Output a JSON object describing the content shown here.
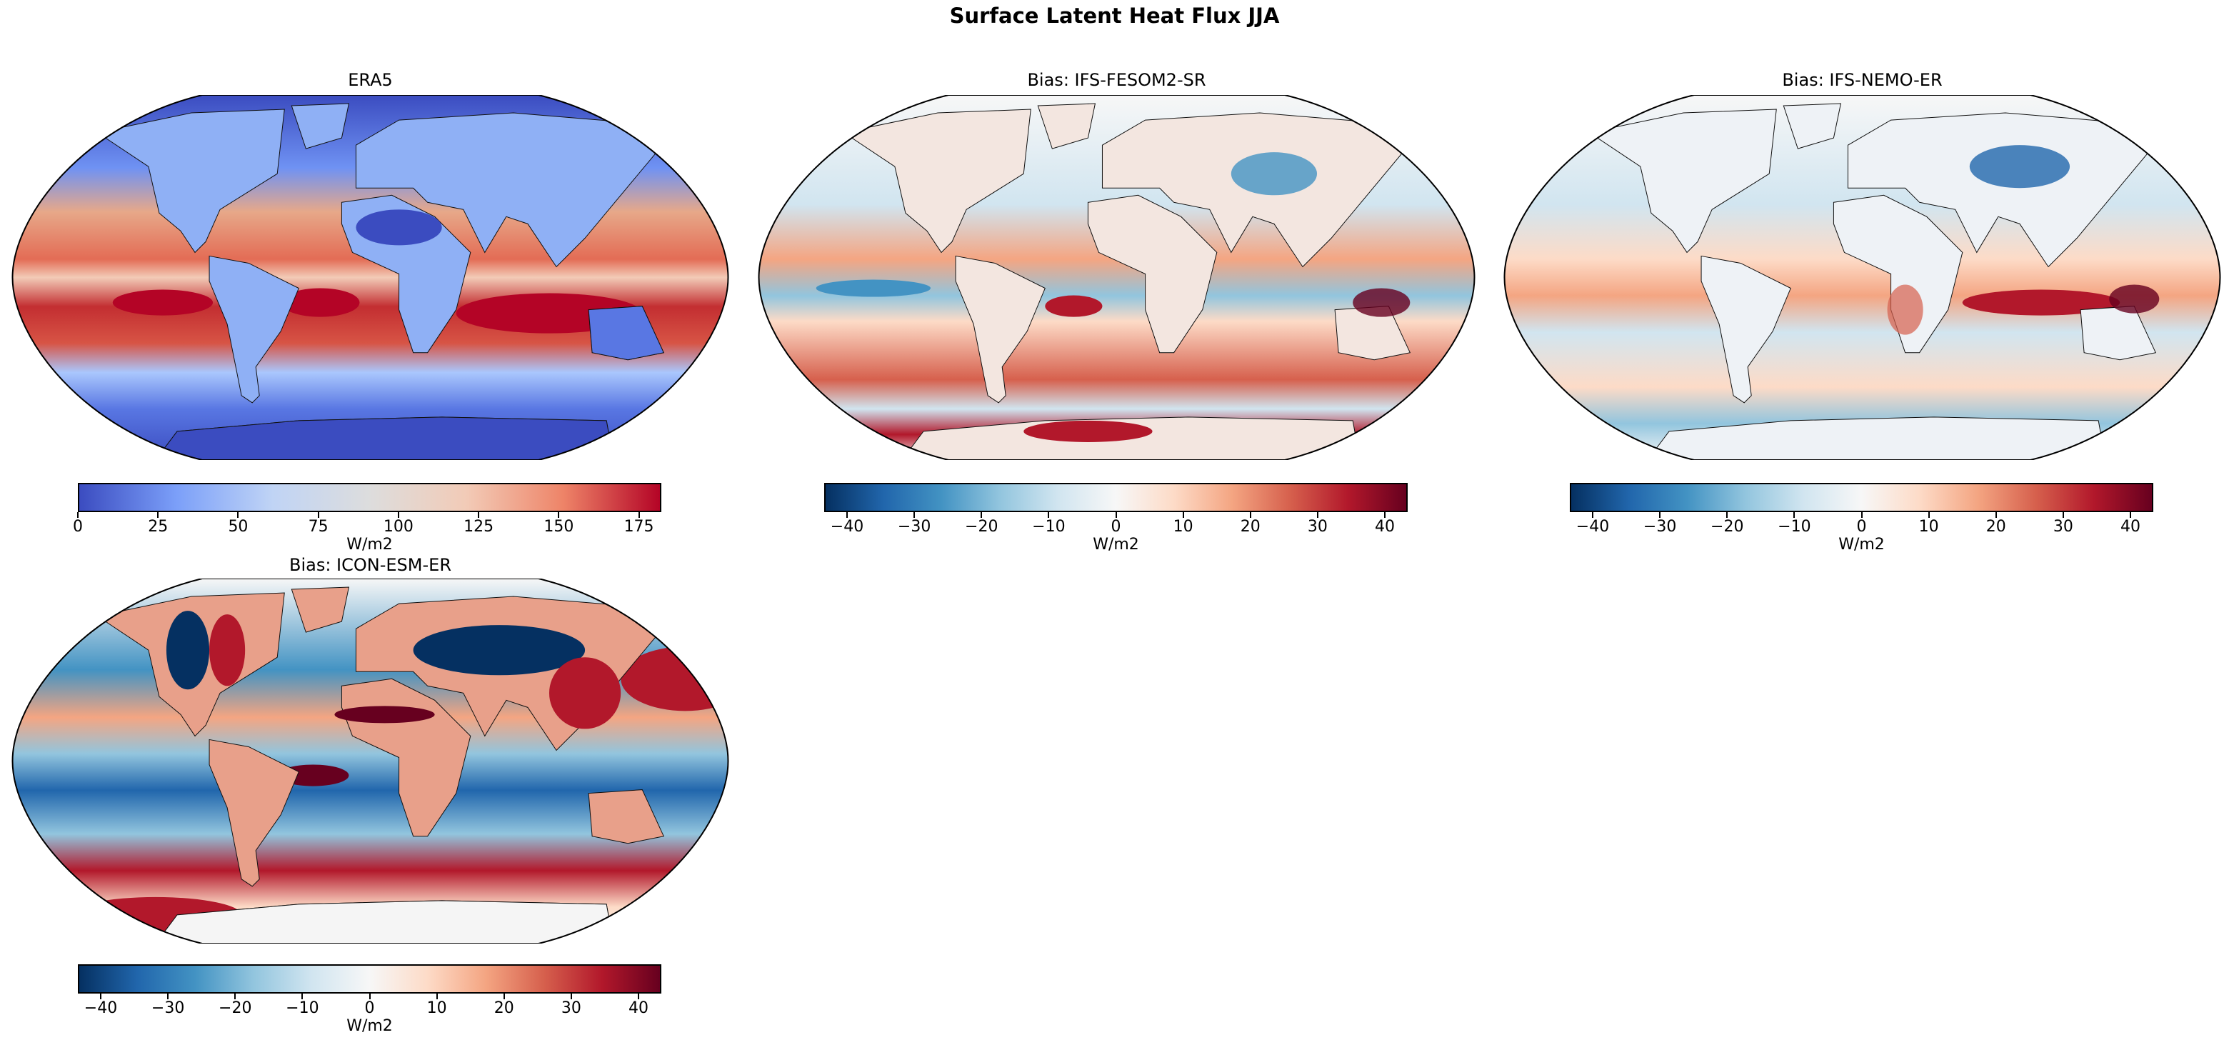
{
  "title": "Surface Latent Heat Flux JJA",
  "chart_data": [
    {
      "type": "heatmap",
      "projection": "Robinson",
      "title": "ERA5",
      "colormap": "coolwarm",
      "colorbar": {
        "label": "W/m2",
        "range": [
          0,
          182
        ],
        "ticks": [
          0,
          25,
          50,
          75,
          100,
          125,
          150,
          175
        ],
        "tick_labels": [
          "0",
          "25",
          "50",
          "75",
          "100",
          "125",
          "150",
          "175"
        ],
        "colors": [
          "#3b4cc0",
          "#7b9ff9",
          "#c0d4f5",
          "#dddddd",
          "#f2cbb7",
          "#ee8468",
          "#b40426"
        ]
      }
    },
    {
      "type": "heatmap",
      "projection": "Robinson",
      "title": "Bias: IFS-FESOM2-SR",
      "colormap": "RdBu_r",
      "colorbar": {
        "label": "W/m2",
        "range": [
          -43.4,
          43.4
        ],
        "ticks": [
          -40,
          -30,
          -20,
          -10,
          0,
          10,
          20,
          30,
          40
        ],
        "tick_labels": [
          "−40",
          "−30",
          "−20",
          "−10",
          "0",
          "10",
          "20",
          "30",
          "40"
        ],
        "colors": [
          "#053061",
          "#2166ac",
          "#4393c3",
          "#92c5de",
          "#d1e5f0",
          "#f7f7f7",
          "#fddbc7",
          "#f4a582",
          "#d6604d",
          "#b2182b",
          "#67001f"
        ]
      }
    },
    {
      "type": "heatmap",
      "projection": "Robinson",
      "title": "Bias: IFS-NEMO-ER",
      "colormap": "RdBu_r",
      "colorbar": {
        "label": "W/m2",
        "range": [
          -43.4,
          43.4
        ],
        "ticks": [
          -40,
          -30,
          -20,
          -10,
          0,
          10,
          20,
          30,
          40
        ],
        "tick_labels": [
          "−40",
          "−30",
          "−20",
          "−10",
          "0",
          "10",
          "20",
          "30",
          "40"
        ],
        "colors": [
          "#053061",
          "#2166ac",
          "#4393c3",
          "#92c5de",
          "#d1e5f0",
          "#f7f7f7",
          "#fddbc7",
          "#f4a582",
          "#d6604d",
          "#b2182b",
          "#67001f"
        ]
      }
    },
    {
      "type": "heatmap",
      "projection": "Robinson",
      "title": "Bias: ICON-ESM-ER",
      "colormap": "RdBu_r",
      "colorbar": {
        "label": "W/m2",
        "range": [
          -43.4,
          43.4
        ],
        "ticks": [
          -40,
          -30,
          -20,
          -10,
          0,
          10,
          20,
          30,
          40
        ],
        "tick_labels": [
          "−40",
          "−30",
          "−20",
          "−10",
          "0",
          "10",
          "20",
          "30",
          "40"
        ],
        "colors": [
          "#053061",
          "#2166ac",
          "#4393c3",
          "#92c5de",
          "#d1e5f0",
          "#f7f7f7",
          "#fddbc7",
          "#f4a582",
          "#d6604d",
          "#b2182b",
          "#67001f"
        ]
      }
    }
  ]
}
